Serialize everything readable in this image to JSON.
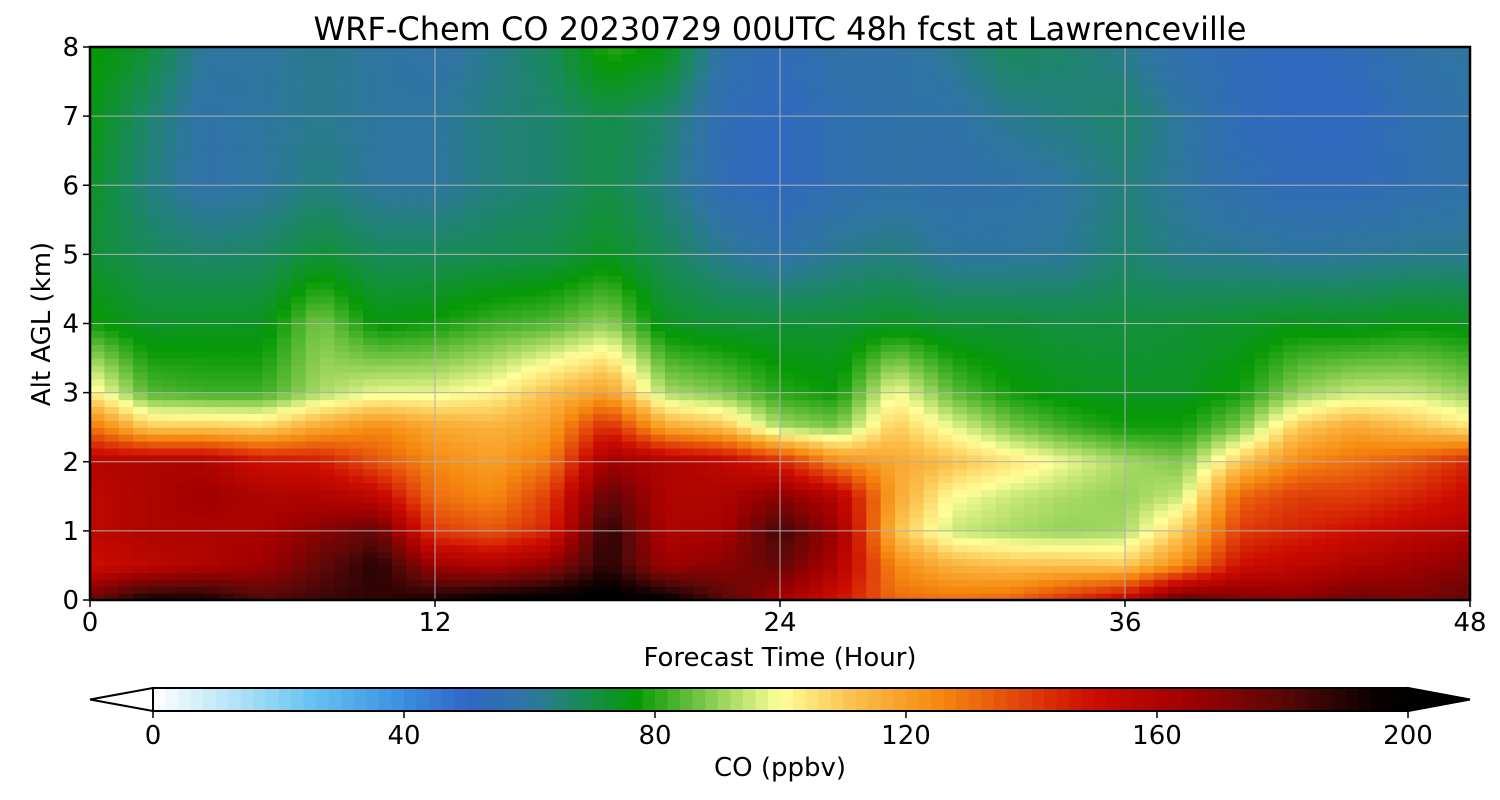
{
  "chart_data": {
    "type": "heatmap",
    "title": "WRF-Chem CO  20230729 00UTC 48h fcst at Lawrenceville",
    "xlabel": "Forecast Time (Hour)",
    "ylabel": "Alt AGL (km)",
    "xlim": [
      0,
      48
    ],
    "ylim": [
      0,
      8
    ],
    "x_ticks": [
      "0",
      "12",
      "24",
      "36",
      "48"
    ],
    "y_ticks": [
      "0",
      "1",
      "2",
      "3",
      "4",
      "5",
      "6",
      "7",
      "8"
    ],
    "grid": true,
    "colorbar": {
      "label": "CO  (ppbv)",
      "range": [
        0,
        200
      ],
      "ticks": [
        "0",
        "40",
        "80",
        "120",
        "160",
        "200"
      ],
      "extend": "both",
      "colormap": [
        [
          0,
          "#ffffff"
        ],
        [
          15,
          "#a6dff5"
        ],
        [
          25,
          "#69c3f2"
        ],
        [
          40,
          "#3a8ee0"
        ],
        [
          50,
          "#3166c8"
        ],
        [
          60,
          "#2e76a0"
        ],
        [
          68,
          "#198a5a"
        ],
        [
          77,
          "#069906"
        ],
        [
          88,
          "#7ec84a"
        ],
        [
          100,
          "#ffff99"
        ],
        [
          112,
          "#fbbe4a"
        ],
        [
          125,
          "#f68a10"
        ],
        [
          138,
          "#e2450a"
        ],
        [
          150,
          "#cc0c00"
        ],
        [
          165,
          "#a00000"
        ],
        [
          180,
          "#5a0808"
        ],
        [
          195,
          "#0a0000"
        ],
        [
          200,
          "#000000"
        ]
      ]
    },
    "x_hours": [
      0,
      2,
      4,
      6,
      8,
      10,
      12,
      14,
      16,
      18,
      20,
      22,
      24,
      26,
      28,
      30,
      32,
      34,
      36,
      38,
      40,
      42,
      44,
      46,
      48
    ],
    "alt_km": [
      0.05,
      0.5,
      1,
      1.5,
      2,
      2.5,
      3,
      4,
      5,
      6,
      7,
      8
    ],
    "co_ppbv": [
      [
        175,
        190,
        190,
        180,
        185,
        188,
        190,
        195,
        198,
        200,
        195,
        180,
        165,
        150,
        130,
        128,
        130,
        140,
        150,
        175,
        170,
        168,
        175,
        172,
        178
      ],
      [
        150,
        155,
        160,
        165,
        178,
        190,
        165,
        160,
        168,
        190,
        165,
        170,
        178,
        160,
        125,
        115,
        112,
        112,
        110,
        125,
        150,
        155,
        160,
        165,
        170
      ],
      [
        155,
        160,
        160,
        162,
        170,
        178,
        140,
        135,
        145,
        190,
        160,
        162,
        185,
        165,
        112,
        95,
        92,
        90,
        92,
        110,
        140,
        145,
        150,
        155,
        160
      ],
      [
        155,
        160,
        165,
        160,
        160,
        155,
        130,
        125,
        140,
        180,
        160,
        160,
        170,
        158,
        118,
        100,
        95,
        92,
        90,
        95,
        132,
        140,
        140,
        145,
        152
      ],
      [
        158,
        160,
        160,
        150,
        148,
        135,
        125,
        120,
        128,
        165,
        160,
        155,
        145,
        125,
        118,
        112,
        105,
        98,
        92,
        88,
        110,
        125,
        130,
        135,
        145
      ],
      [
        130,
        110,
        110,
        108,
        118,
        125,
        118,
        115,
        120,
        145,
        118,
        112,
        92,
        88,
        110,
        98,
        88,
        82,
        78,
        78,
        88,
        110,
        118,
        112,
        105
      ],
      [
        104,
        84,
        82,
        82,
        92,
        98,
        98,
        102,
        112,
        120,
        92,
        88,
        80,
        77,
        100,
        85,
        78,
        75,
        74,
        74,
        78,
        90,
        95,
        95,
        90
      ],
      [
        78,
        73,
        74,
        74,
        88,
        76,
        78,
        82,
        84,
        90,
        74,
        72,
        72,
        72,
        74,
        72,
        72,
        71,
        71,
        72,
        73,
        75,
        74,
        76,
        75
      ],
      [
        72,
        68,
        66,
        67,
        72,
        68,
        68,
        69,
        70,
        74,
        68,
        62,
        58,
        62,
        64,
        60,
        60,
        61,
        66,
        62,
        62,
        60,
        61,
        62,
        62
      ],
      [
        74,
        64,
        58,
        60,
        64,
        60,
        60,
        64,
        66,
        70,
        64,
        55,
        52,
        56,
        58,
        57,
        58,
        60,
        64,
        60,
        56,
        54,
        54,
        56,
        58
      ],
      [
        76,
        66,
        58,
        60,
        62,
        60,
        60,
        64,
        66,
        70,
        66,
        55,
        52,
        56,
        58,
        58,
        62,
        64,
        66,
        60,
        54,
        52,
        52,
        56,
        58
      ],
      [
        78,
        72,
        60,
        60,
        62,
        60,
        58,
        62,
        68,
        80,
        76,
        58,
        54,
        58,
        58,
        62,
        68,
        66,
        62,
        56,
        54,
        52,
        54,
        58,
        60
      ]
    ]
  }
}
